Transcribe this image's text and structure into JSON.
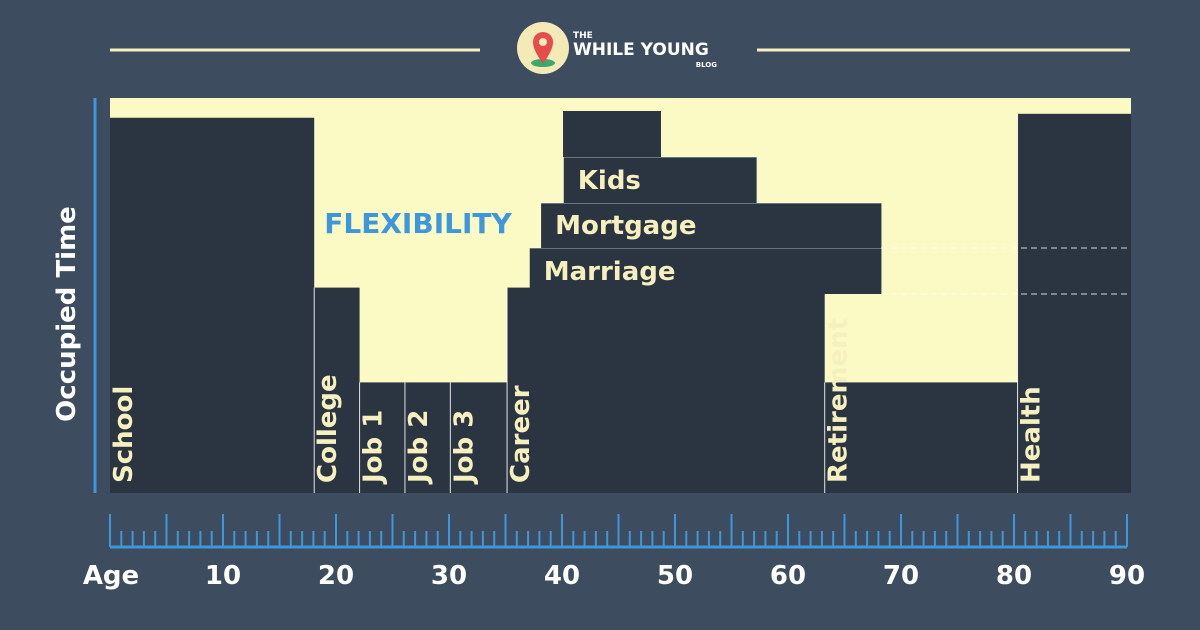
{
  "colors": {
    "background": "#3d4d5f",
    "occupied": "#2b3541",
    "flexibility": "#fbf9c4",
    "accent_blue": "#3c97dc",
    "label_text": "#f6f0bf",
    "axis_text": "#ffffff",
    "logo_circle": "#f3eab8",
    "logo_pin": "#e84b4b",
    "logo_ground": "#3aa969"
  },
  "header": {
    "logo": {
      "line1": "THE",
      "line2": "WHILE YOUNG",
      "line3": "BLOG",
      "icon": "map-pin-icon"
    }
  },
  "diagram": {
    "y_axis_label": "Occupied Time",
    "x_axis_label": "Age",
    "flexibility_label": "FLEXIBILITY",
    "ticks": [
      "10",
      "20",
      "30",
      "40",
      "50",
      "60",
      "70",
      "80",
      "90"
    ],
    "vertical_bars": [
      {
        "label": "School",
        "from_age": 0,
        "to_age": 18,
        "level": 0.95
      },
      {
        "label": "College",
        "from_age": 18,
        "to_age": 22,
        "level": 0.52
      },
      {
        "label": "Job 1",
        "from_age": 22,
        "to_age": 26,
        "level": 0.28
      },
      {
        "label": "Job 2",
        "from_age": 26,
        "to_age": 30,
        "level": 0.28
      },
      {
        "label": "Job 3",
        "from_age": 30,
        "to_age": 35,
        "level": 0.28
      },
      {
        "label": "Career",
        "from_age": 35,
        "to_age": 63,
        "level": 0.52
      },
      {
        "label": "Retirement",
        "from_age": 63,
        "to_age": 80,
        "level": 0.28
      },
      {
        "label": "Health",
        "from_age": 80,
        "to_age": 90,
        "level": 0.96
      }
    ],
    "horizontal_bars": [
      {
        "label": "Marriage",
        "from_age": 37,
        "to_age": 68
      },
      {
        "label": "Mortgage",
        "from_age": 38,
        "to_age": 68
      },
      {
        "label": "Kids",
        "from_age": 40,
        "to_age": 57
      }
    ]
  }
}
